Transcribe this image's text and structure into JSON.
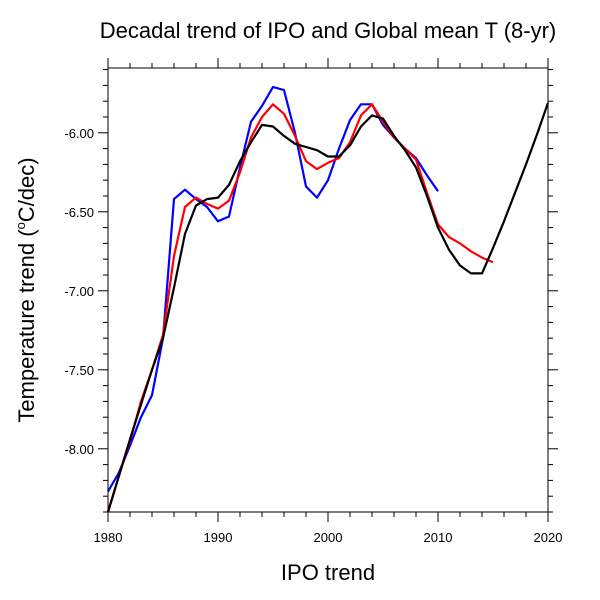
{
  "chart_data": {
    "type": "line",
    "title": "Decadal trend of IPO and Global mean T (8-yr)",
    "xlabel": "IPO trend",
    "ylabel_main": "Temperature trend (",
    "ylabel_sup": "o",
    "ylabel_tail": "C/dec)",
    "xlim": [
      1980,
      2020
    ],
    "ylim": [
      -8.4,
      -5.59
    ],
    "xticks": [
      "1980",
      "1990",
      "2000",
      "2010",
      "2020"
    ],
    "xtick_values": [
      1980,
      1990,
      2000,
      2010,
      2020
    ],
    "yticks": [
      "-6.00",
      "-6.50",
      "-7.00",
      "-7.50",
      "-8.00"
    ],
    "ytick_values": [
      -6.0,
      -6.5,
      -7.0,
      -7.5,
      -8.0
    ],
    "grid": false,
    "series": [
      {
        "color": "#0000ff",
        "x_start": 1980,
        "values": [
          -8.27,
          -8.15,
          -7.98,
          -7.8,
          -7.66,
          -7.3,
          -6.42,
          -6.36,
          -6.42,
          -6.47,
          -6.56,
          -6.53,
          -6.22,
          -5.93,
          -5.83,
          -5.71,
          -5.73,
          -6.0,
          -6.34,
          -6.41,
          -6.3,
          -6.1,
          -5.92,
          -5.82,
          -5.82,
          -5.95,
          -6.03,
          -6.1,
          -6.16,
          -6.27,
          -6.37
        ]
      },
      {
        "color": "#ff0000",
        "x_start": 1980,
        "values": [
          -8.4,
          -8.17,
          -7.95,
          -7.7,
          -7.5,
          -7.28,
          -6.78,
          -6.47,
          -6.41,
          -6.45,
          -6.48,
          -6.43,
          -6.25,
          -6.03,
          -5.9,
          -5.82,
          -5.88,
          -6.02,
          -6.18,
          -6.23,
          -6.19,
          -6.16,
          -6.06,
          -5.89,
          -5.82,
          -5.93,
          -6.03,
          -6.1,
          -6.17,
          -6.38,
          -6.58,
          -6.66,
          -6.7,
          -6.75,
          -6.79,
          -6.82
        ]
      },
      {
        "color": "#000000",
        "x_start": 1980,
        "values": [
          -8.4,
          -8.17,
          -7.94,
          -7.72,
          -7.5,
          -7.3,
          -6.98,
          -6.64,
          -6.46,
          -6.42,
          -6.41,
          -6.33,
          -6.18,
          -6.06,
          -5.95,
          -5.96,
          -6.02,
          -6.07,
          -6.09,
          -6.11,
          -6.15,
          -6.15,
          -6.08,
          -5.96,
          -5.89,
          -5.91,
          -6.02,
          -6.11,
          -6.22,
          -6.4,
          -6.6,
          -6.74,
          -6.84,
          -6.89,
          -6.89,
          -6.73,
          -6.56,
          -6.38,
          -6.2,
          -6.01,
          -5.81
        ]
      }
    ]
  }
}
